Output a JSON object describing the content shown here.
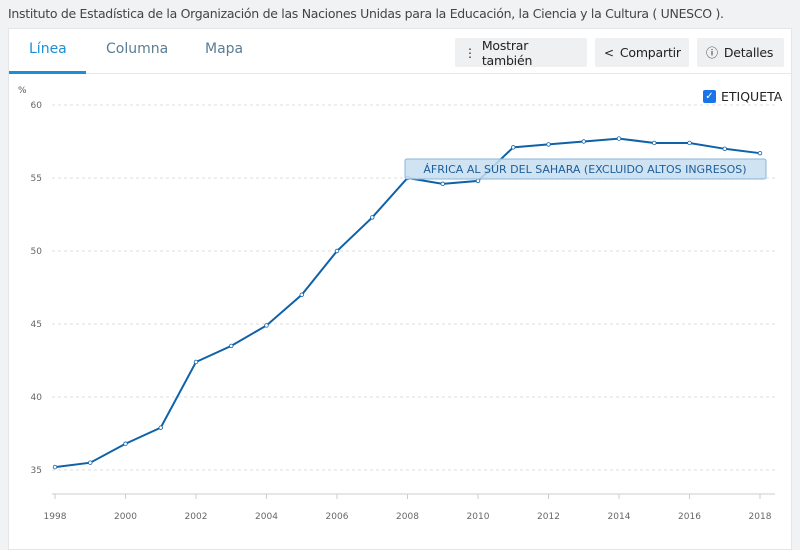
{
  "source": "Instituto de Estadística de la Organización de las Naciones Unidas para la Educación, la Ciencia y la Cultura ( UNESCO ).",
  "tabs": [
    {
      "label": "Línea",
      "active": true
    },
    {
      "label": "Columna",
      "active": false
    },
    {
      "label": "Mapa",
      "active": false
    }
  ],
  "toolbar": {
    "show_also": "Mostrar también",
    "share": "Compartir",
    "details": "Detalles"
  },
  "label_toggle": {
    "label": "ETIQUETA",
    "checked": true
  },
  "colors": {
    "accent": "#1a8fd8",
    "series": "#0f62a8",
    "checkbox": "#1a73e8"
  },
  "chart_data": {
    "type": "line",
    "ylabel": "%",
    "ylim": [
      35,
      60
    ],
    "yticks": [
      35,
      40,
      45,
      50,
      55,
      60
    ],
    "xticks": [
      1998,
      2000,
      2002,
      2004,
      2006,
      2008,
      2010,
      2012,
      2014,
      2016,
      2018
    ],
    "grid": true,
    "x": [
      1998,
      1999,
      2000,
      2001,
      2002,
      2003,
      2004,
      2005,
      2006,
      2007,
      2008,
      2009,
      2010,
      2011,
      2012,
      2013,
      2014,
      2015,
      2016,
      2017,
      2018
    ],
    "series": [
      {
        "name": "ÁFRICA AL SUR DEL SAHARA (EXCLUIDO ALTOS INGRESOS)",
        "values": [
          35.2,
          35.5,
          36.8,
          37.9,
          42.4,
          43.5,
          44.9,
          47.0,
          50.0,
          52.3,
          55.0,
          54.6,
          54.8,
          57.1,
          57.3,
          57.5,
          57.7,
          57.4,
          57.4,
          57.0,
          56.7
        ]
      }
    ]
  }
}
